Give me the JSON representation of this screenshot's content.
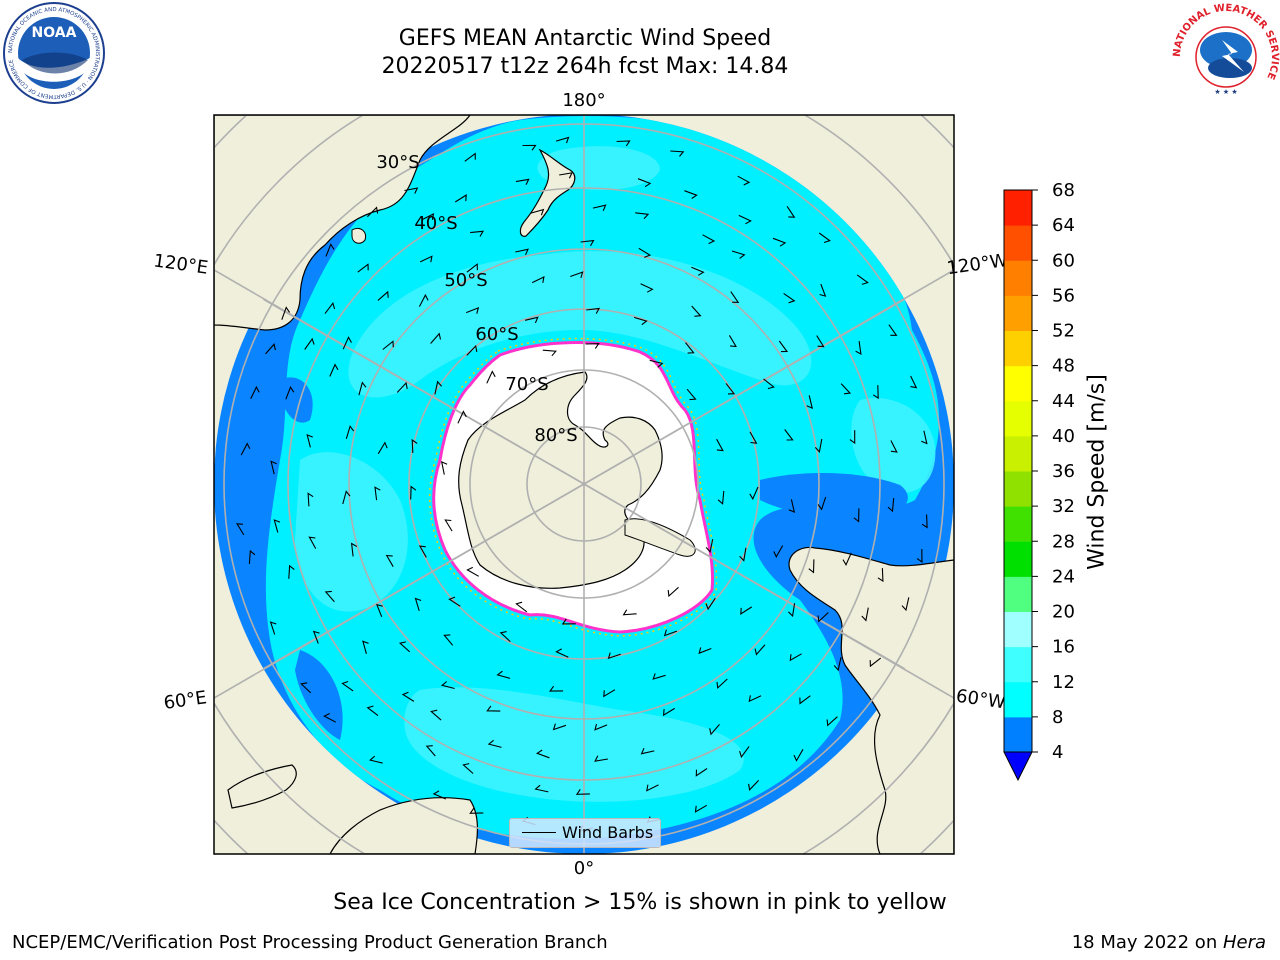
{
  "title": {
    "line1": "GEFS MEAN Antarctic Wind Speed",
    "line2": "20220517 t12z 264h fcst   Max: 14.84"
  },
  "longitude_labels": {
    "top": "180°",
    "bottom": "0°",
    "upper_left": "120°E",
    "upper_right": "120°W",
    "lower_left": "60°E",
    "lower_right": "60°W"
  },
  "latitude_labels": [
    "30°S",
    "40°S",
    "50°S",
    "60°S",
    "70°S",
    "80°S"
  ],
  "legend": {
    "label": "Wind Barbs"
  },
  "colorbar": {
    "label": "Wind Speed [m/s]",
    "ticks": [
      "4",
      "8",
      "12",
      "16",
      "20",
      "24",
      "28",
      "32",
      "36",
      "40",
      "44",
      "48",
      "52",
      "56",
      "60",
      "64",
      "68"
    ],
    "colors": [
      "#0080ff",
      "#00ffff",
      "#40ffff",
      "#a0ffff",
      "#50ff80",
      "#00e000",
      "#40e000",
      "#90e000",
      "#c8f000",
      "#e6ff00",
      "#ffff00",
      "#ffd000",
      "#ffa000",
      "#ff8000",
      "#ff5000",
      "#ff2000"
    ],
    "extend_color": "#0000ff"
  },
  "colors": {
    "land": "#efefdb",
    "ocean_low": "#0a84ff",
    "ocean_mid": "#00f0ff",
    "ocean_high": "#3df3ff",
    "ice_edge": "#ff33cc",
    "ice_fringe": "#ffcc00",
    "grid": "#b0b0b0"
  },
  "caption": "Sea Ice Concentration > 15% is shown in pink to yellow",
  "footer": {
    "left": "NCEP/EMC/Verification Post Processing Product Generation Branch",
    "right_date": "18 May 2022 on ",
    "right_host": "Hera"
  },
  "logos": {
    "left": "NOAA",
    "left_ring": "NATIONAL OCEANIC AND ATMOSPHERIC ADMINISTRATION · U.S. DEPARTMENT OF COMMERCE",
    "right_ring": "NATIONAL WEATHER SERVICE"
  }
}
